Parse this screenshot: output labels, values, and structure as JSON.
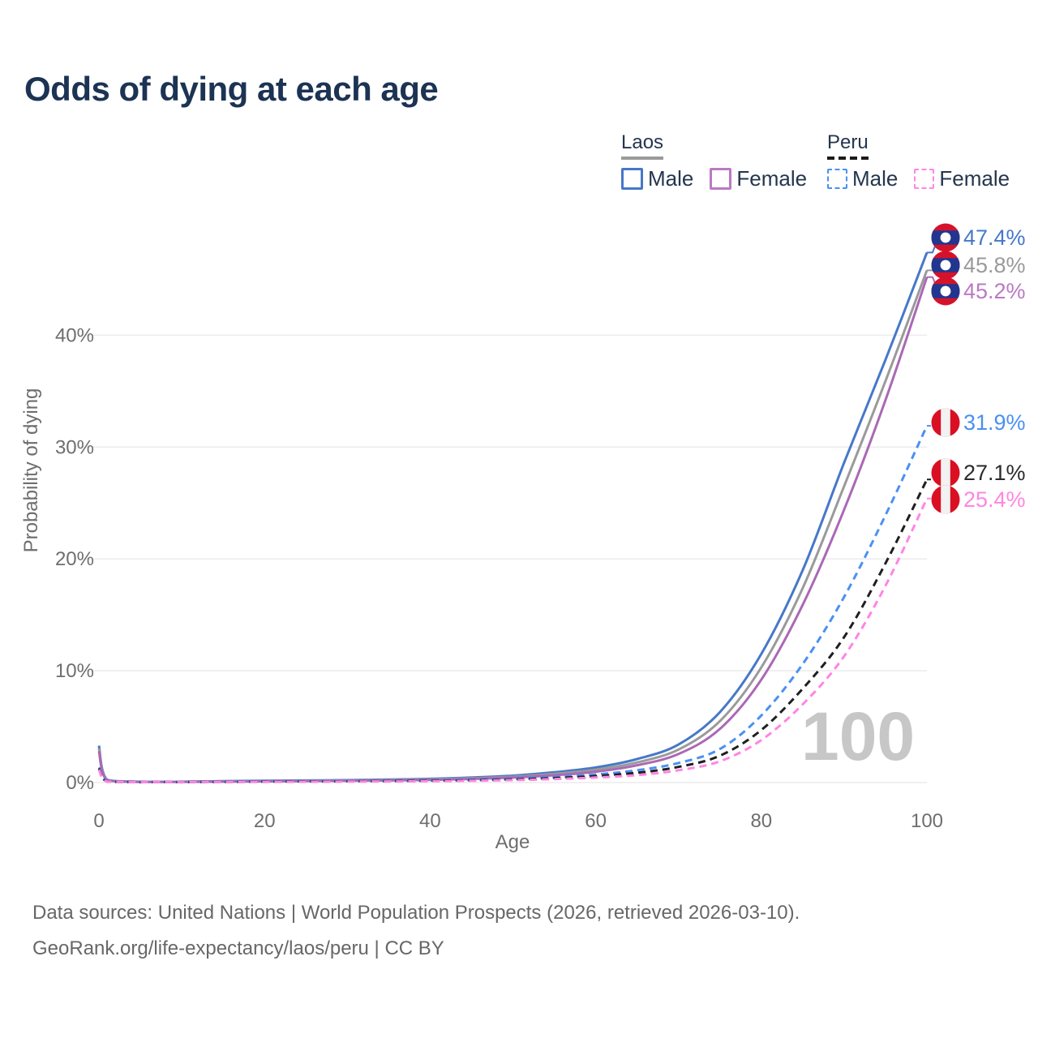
{
  "title": "Odds of dying at each age",
  "watermark": "100",
  "footer": {
    "line1": "Data sources: United Nations | World Population Prospects (2026, retrieved 2026-03-10).",
    "line2": "GeoRank.org/life-expectancy/laos/peru | CC BY"
  },
  "legend": {
    "groups": [
      {
        "label": "Laos",
        "underline_color": "#9a9a9a",
        "underline_style": "solid",
        "items": [
          {
            "label": "Male",
            "color": "#4678c8",
            "style": "solid"
          },
          {
            "label": "Female",
            "color": "#bb79c4",
            "style": "solid"
          }
        ]
      },
      {
        "label": "Peru",
        "underline_color": "#1a1a1a",
        "underline_style": "dashed",
        "items": [
          {
            "label": "Male",
            "color": "#4a90f2",
            "style": "dashed"
          },
          {
            "label": "Female",
            "color": "#ff85e4",
            "style": "dashed"
          }
        ]
      }
    ]
  },
  "chart_data": {
    "type": "line",
    "title": "Odds of dying at each age",
    "xlabel": "Age",
    "ylabel": "Probability of dying",
    "xlim": [
      0,
      100
    ],
    "ylim": [
      0,
      48
    ],
    "grid": "horizontal",
    "legend_position": "top-right",
    "x_ticks": [
      {
        "v": 0,
        "label": "0"
      },
      {
        "v": 20,
        "label": "20"
      },
      {
        "v": 40,
        "label": "40"
      },
      {
        "v": 60,
        "label": "60"
      },
      {
        "v": 80,
        "label": "80"
      },
      {
        "v": 100,
        "label": "100"
      }
    ],
    "y_ticks": [
      {
        "v": 0,
        "label": "0%"
      },
      {
        "v": 10,
        "label": "10%"
      },
      {
        "v": 20,
        "label": "20%"
      },
      {
        "v": 30,
        "label": "30%"
      },
      {
        "v": 40,
        "label": "40%"
      }
    ],
    "ages": [
      0,
      1,
      5,
      10,
      15,
      20,
      25,
      30,
      35,
      40,
      45,
      50,
      55,
      60,
      65,
      70,
      75,
      80,
      85,
      90,
      95,
      100
    ],
    "series": [
      {
        "name": "Laos Male",
        "country": "Laos",
        "sex": "Male",
        "color": "#4678c8",
        "label_color": "#4678c8",
        "line_style": "solid",
        "flag": "laos",
        "end_label": "47.4%",
        "end_value": 47.4,
        "values": [
          3.3,
          0.25,
          0.08,
          0.08,
          0.12,
          0.16,
          0.19,
          0.22,
          0.27,
          0.33,
          0.45,
          0.62,
          0.92,
          1.35,
          2.1,
          3.4,
          6.3,
          11.5,
          19.0,
          28.6,
          37.8,
          47.4
        ]
      },
      {
        "name": "Laos Both sexes",
        "country": "Laos",
        "sex": "Both sexes",
        "color": "#9a9a9a",
        "label_color": "#9a9a9a",
        "line_style": "solid",
        "flag": "laos",
        "end_label": "45.8%",
        "end_value": 45.8,
        "values": [
          3.05,
          0.22,
          0.07,
          0.07,
          0.1,
          0.13,
          0.16,
          0.19,
          0.23,
          0.28,
          0.38,
          0.53,
          0.78,
          1.15,
          1.8,
          2.95,
          5.5,
          10.3,
          17.4,
          26.5,
          35.9,
          45.8
        ]
      },
      {
        "name": "Laos Female",
        "country": "Laos",
        "sex": "Female",
        "color": "#ab68b5",
        "label_color": "#bb79c4",
        "line_style": "solid",
        "flag": "laos",
        "end_label": "45.2%",
        "end_value": 45.2,
        "values": [
          2.8,
          0.2,
          0.06,
          0.06,
          0.08,
          0.11,
          0.13,
          0.16,
          0.19,
          0.24,
          0.32,
          0.45,
          0.65,
          0.97,
          1.55,
          2.55,
          4.8,
          9.2,
          15.9,
          24.4,
          34.2,
          45.2
        ]
      },
      {
        "name": "Peru Male",
        "country": "Peru",
        "sex": "Male",
        "color": "#4a90f2",
        "label_color": "#4a90f2",
        "line_style": "dashed",
        "flag": "peru",
        "end_label": "31.9%",
        "end_value": 31.9,
        "values": [
          1.35,
          0.1,
          0.04,
          0.04,
          0.07,
          0.1,
          0.12,
          0.14,
          0.16,
          0.19,
          0.25,
          0.34,
          0.5,
          0.72,
          1.1,
          1.75,
          3.0,
          6.0,
          10.6,
          16.6,
          23.9,
          31.9
        ]
      },
      {
        "name": "Peru Both sexes",
        "country": "Peru",
        "sex": "Both sexes",
        "color": "#1f1f1f",
        "label_color": "#2b2b2b",
        "line_style": "dashed",
        "flag": "peru",
        "end_label": "27.1%",
        "end_value": 27.1,
        "values": [
          1.25,
          0.09,
          0.03,
          0.03,
          0.05,
          0.08,
          0.1,
          0.11,
          0.13,
          0.16,
          0.2,
          0.28,
          0.4,
          0.58,
          0.88,
          1.4,
          2.4,
          4.7,
          8.4,
          13.0,
          19.6,
          27.1
        ]
      },
      {
        "name": "Peru Female",
        "country": "Peru",
        "sex": "Female",
        "color": "#ff85e4",
        "label_color": "#ff85e4",
        "line_style": "dashed",
        "flag": "peru",
        "end_label": "25.4%",
        "end_value": 25.4,
        "values": [
          1.15,
          0.08,
          0.03,
          0.03,
          0.04,
          0.06,
          0.07,
          0.09,
          0.1,
          0.12,
          0.16,
          0.22,
          0.31,
          0.45,
          0.67,
          1.1,
          1.9,
          3.8,
          7.0,
          11.3,
          17.6,
          25.4
        ]
      }
    ],
    "flag_colors": {
      "laos_red": "#d6122b",
      "laos_blue": "#22368f",
      "laos_white": "#ffffff",
      "peru_red": "#d91023",
      "peru_white": "#f2f2f2"
    }
  }
}
